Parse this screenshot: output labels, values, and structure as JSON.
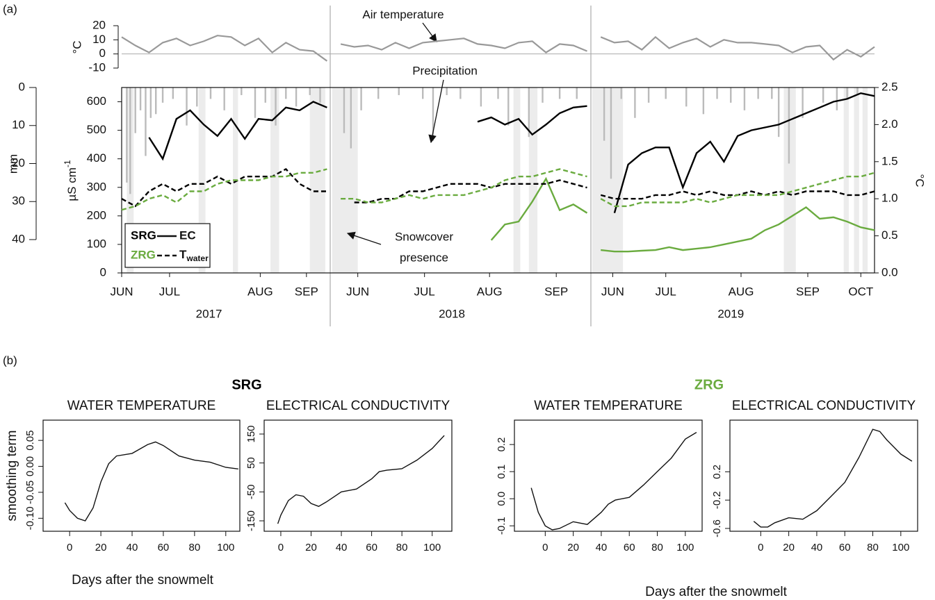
{
  "panel_labels": [
    "(a)",
    "(b)"
  ],
  "groups": [
    {
      "title": "SRG",
      "color": "#000000",
      "xlabel": "Days after the snowmelt"
    },
    {
      "title": "ZRG",
      "color": "#6aab3f",
      "xlabel": "Days after the snowmelt"
    }
  ],
  "chart_data": [
    {
      "type": "combo",
      "xlim": [
        0,
        440
      ],
      "xticks": [
        {
          "value": 0,
          "label": "JUN"
        },
        {
          "value": 28,
          "label": "JUL"
        },
        {
          "value": 81,
          "label": "AUG"
        },
        {
          "value": 108,
          "label": "SEP"
        },
        {
          "value": 138,
          "label": "JUN"
        },
        {
          "value": 177,
          "label": "JUL"
        },
        {
          "value": 215,
          "label": "AUG"
        },
        {
          "value": 254,
          "label": "SEP"
        },
        {
          "value": 287,
          "label": "JUN"
        },
        {
          "value": 318,
          "label": "JUL"
        },
        {
          "value": 362,
          "label": "AUG"
        },
        {
          "value": 401,
          "label": "SEP"
        },
        {
          "value": 432,
          "label": "OCT"
        }
      ],
      "year_labels": [
        {
          "value": 51,
          "label": "2017"
        },
        {
          "value": 193,
          "label": "2018"
        },
        {
          "value": 356,
          "label": "2019"
        }
      ],
      "x": [
        0,
        8,
        16,
        24,
        32,
        40,
        48,
        56,
        64,
        72,
        80,
        88,
        96,
        104,
        112,
        120,
        124,
        128,
        136,
        144,
        152,
        160,
        168,
        176,
        184,
        192,
        200,
        208,
        216,
        224,
        232,
        240,
        248,
        256,
        264,
        272,
        276,
        280,
        288,
        296,
        304,
        312,
        320,
        328,
        336,
        344,
        352,
        360,
        368,
        376,
        384,
        392,
        400,
        408,
        416,
        424,
        432,
        440
      ],
      "air": {
        "ylabel": "°C",
        "annotation": "Air temperature",
        "color": "#999999",
        "ylim": [
          -10,
          20
        ],
        "yticks": [
          20,
          10,
          0,
          -10
        ],
        "values": [
          12,
          6,
          1,
          8,
          11,
          6,
          9,
          13,
          12,
          6,
          11,
          1,
          8,
          3,
          2,
          -5,
          null,
          7,
          5,
          6,
          3,
          8,
          4,
          8,
          9,
          10,
          11,
          7,
          6,
          4,
          8,
          9,
          1,
          7,
          6,
          2,
          null,
          12,
          8,
          9,
          3,
          12,
          4,
          8,
          11,
          5,
          10,
          8,
          8,
          7,
          6,
          1,
          5,
          6,
          -4,
          3,
          -2,
          5
        ]
      },
      "precip": {
        "ylabel": "mm",
        "annotation": "Precipitation",
        "color": "#bbbbbb",
        "ylim": [
          0,
          40
        ],
        "yticks": [
          0,
          10,
          20,
          30,
          40
        ],
        "x": [
          3,
          5,
          8,
          11,
          14,
          17,
          20,
          24,
          30,
          38,
          44,
          52,
          60,
          70,
          78,
          84,
          90,
          96,
          102,
          110,
          116,
          130,
          134,
          140,
          150,
          162,
          176,
          182,
          190,
          198,
          210,
          220,
          226,
          238,
          246,
          256,
          266,
          282,
          286,
          292,
          300,
          308,
          318,
          330,
          340,
          348,
          356,
          364,
          372,
          380,
          384,
          390,
          398,
          410,
          418,
          424,
          430
        ],
        "values": [
          25,
          28,
          12,
          6,
          18,
          8,
          7,
          4,
          3,
          10,
          5,
          3,
          6,
          2,
          8,
          4,
          10,
          3,
          5,
          2,
          4,
          12,
          16,
          6,
          3,
          2,
          3,
          14,
          2,
          3,
          5,
          3,
          10,
          13,
          4,
          3,
          3,
          14,
          24,
          3,
          8,
          4,
          3,
          5,
          7,
          3,
          4,
          6,
          3,
          3,
          13,
          20,
          8,
          4,
          6,
          3,
          2
        ]
      },
      "snowcover": {
        "annotation": [
          "Snowcover",
          "presence"
        ],
        "color": "#ececec",
        "intervals": [
          [
            3,
            7
          ],
          [
            45,
            49
          ],
          [
            65,
            68
          ],
          [
            87,
            92
          ],
          [
            110,
            119
          ],
          [
            123,
            138
          ],
          [
            229,
            233
          ],
          [
            238,
            243
          ],
          [
            275,
            293
          ],
          [
            387,
            394
          ],
          [
            422,
            425
          ],
          [
            428,
            431
          ],
          [
            433,
            436
          ]
        ]
      },
      "ylabel": {
        "text": "µS cm",
        "sup": "-1"
      },
      "ylim": [
        0,
        650
      ],
      "yticks": [
        0,
        100,
        200,
        300,
        400,
        500,
        600
      ],
      "y2label": "°C",
      "y2lim": [
        0,
        2.5
      ],
      "y2ticks": [
        {
          "value": 0,
          "label": "0.0"
        },
        0.5,
        {
          "value": 1,
          "label": "1.0"
        },
        1.5,
        {
          "value": 2,
          "label": "2.0"
        },
        2.5
      ],
      "legend": {
        "sites": [
          {
            "name": "SRG",
            "color": "#000000"
          },
          {
            "name": "ZRG",
            "color": "#6aab3f"
          }
        ],
        "variables": [
          {
            "name": "EC",
            "dash": "solid"
          },
          {
            "name": "T",
            "subscript": "water",
            "dash": "dashed"
          }
        ]
      },
      "series": [
        {
          "color": "#000000",
          "dash": "solid",
          "axis": "y",
          "values": [
            null,
            null,
            475,
            400,
            540,
            570,
            520,
            480,
            540,
            470,
            540,
            535,
            580,
            570,
            600,
            580,
            null,
            null,
            null,
            null,
            null,
            null,
            null,
            null,
            null,
            null,
            null,
            530,
            545,
            520,
            540,
            485,
            520,
            560,
            580,
            585,
            null,
            null,
            210,
            380,
            420,
            440,
            440,
            300,
            420,
            460,
            390,
            480,
            500,
            510,
            520,
            540,
            560,
            580,
            600,
            610,
            630,
            620
          ]
        },
        {
          "color": "#6aab3f",
          "dash": "solid",
          "axis": "y",
          "values": [
            null,
            null,
            null,
            null,
            null,
            null,
            null,
            null,
            null,
            null,
            null,
            null,
            null,
            null,
            null,
            null,
            null,
            null,
            null,
            null,
            null,
            null,
            null,
            null,
            null,
            null,
            null,
            null,
            115,
            170,
            180,
            250,
            330,
            220,
            240,
            210,
            null,
            80,
            75,
            75,
            78,
            80,
            90,
            80,
            85,
            90,
            100,
            110,
            120,
            150,
            170,
            200,
            230,
            190,
            195,
            180,
            160,
            150
          ]
        },
        {
          "color": "#000000",
          "dash": "dashed",
          "axis": "y2",
          "values": [
            1.0,
            0.9,
            1.1,
            1.2,
            1.1,
            1.2,
            1.2,
            1.3,
            1.2,
            1.3,
            1.3,
            1.3,
            1.4,
            1.2,
            1.1,
            1.1,
            null,
            null,
            0.95,
            0.95,
            1.0,
            1.0,
            1.1,
            1.1,
            1.15,
            1.2,
            1.2,
            1.2,
            1.15,
            1.2,
            1.2,
            1.2,
            1.2,
            1.25,
            1.2,
            1.15,
            null,
            1.05,
            1.0,
            1.0,
            1.0,
            1.05,
            1.05,
            1.1,
            1.05,
            1.1,
            1.05,
            1.05,
            1.1,
            1.05,
            1.1,
            1.05,
            1.1,
            1.1,
            1.1,
            1.05,
            1.05,
            1.1
          ]
        },
        {
          "color": "#6aab3f",
          "dash": "dashed",
          "axis": "y2",
          "values": [
            0.85,
            0.9,
            1.0,
            1.05,
            0.95,
            1.1,
            1.1,
            1.2,
            1.25,
            1.25,
            1.25,
            1.3,
            1.3,
            1.35,
            1.35,
            1.4,
            null,
            1.0,
            1.0,
            0.95,
            0.95,
            1.0,
            1.05,
            1.0,
            1.05,
            1.05,
            1.05,
            1.1,
            1.15,
            1.25,
            1.3,
            1.3,
            1.35,
            1.4,
            1.35,
            1.3,
            null,
            1.0,
            0.9,
            0.9,
            0.95,
            0.95,
            0.95,
            0.95,
            1.0,
            0.95,
            1.0,
            1.05,
            1.05,
            1.05,
            1.05,
            1.1,
            1.15,
            1.2,
            1.25,
            1.3,
            1.3,
            1.35
          ]
        }
      ]
    },
    {
      "type": "line",
      "title": "WATER TEMPERATURE",
      "ylabel": "smoothing term",
      "color": "#111111",
      "xlim": [
        -17,
        109
      ],
      "ylim": [
        -0.125,
        0.089
      ],
      "xticks": [
        0,
        20,
        40,
        60,
        80,
        100
      ],
      "yticks": [
        0.05,
        {
          "value": 0,
          "label": "0.00"
        },
        -0.05,
        {
          "value": -0.1,
          "label": "-0.10"
        }
      ],
      "x": [
        -3,
        0,
        5,
        10,
        15,
        20,
        25,
        30,
        40,
        50,
        55,
        60,
        70,
        80,
        90,
        100,
        108
      ],
      "values": [
        -0.07,
        -0.085,
        -0.1,
        -0.105,
        -0.08,
        -0.03,
        0.005,
        0.02,
        0.025,
        0.042,
        0.047,
        0.04,
        0.02,
        0.012,
        0.008,
        -0.002,
        -0.005
      ]
    },
    {
      "type": "line",
      "title": "ELECTRICAL CONDUCTIVITY",
      "color": "#111111",
      "xlim": [
        -11,
        113
      ],
      "ylim": [
        -186,
        198
      ],
      "xticks": [
        0,
        20,
        40,
        60,
        80,
        100
      ],
      "yticks": [
        150,
        50,
        -50,
        -150
      ],
      "x": [
        -2,
        0,
        5,
        10,
        15,
        20,
        25,
        30,
        40,
        50,
        60,
        65,
        70,
        80,
        90,
        100,
        108
      ],
      "values": [
        -160,
        -130,
        -80,
        -60,
        -65,
        -90,
        -100,
        -85,
        -50,
        -40,
        -5,
        20,
        25,
        30,
        60,
        100,
        145
      ]
    },
    {
      "type": "line",
      "title": "WATER TEMPERATURE",
      "color": "#111111",
      "xlim": [
        -22,
        112
      ],
      "ylim": [
        -0.12,
        0.29
      ],
      "xticks": [
        0,
        20,
        40,
        60,
        80,
        100
      ],
      "yticks": [
        0.2,
        0.1,
        {
          "value": 0,
          "label": "0.0"
        },
        -0.1
      ],
      "x": [
        -10,
        -5,
        0,
        5,
        10,
        20,
        30,
        40,
        45,
        50,
        60,
        70,
        80,
        90,
        100,
        108
      ],
      "values": [
        0.04,
        -0.05,
        -0.1,
        -0.115,
        -0.11,
        -0.085,
        -0.095,
        -0.05,
        -0.02,
        -0.005,
        0.005,
        0.05,
        0.1,
        0.15,
        0.22,
        0.245
      ]
    },
    {
      "type": "line",
      "title": "ELECTRICAL CONDUCTIVITY",
      "color": "#111111",
      "xlim": [
        -22,
        112
      ],
      "ylim": [
        -0.64,
        0.93
      ],
      "xticks": [
        0,
        20,
        40,
        60,
        80,
        100
      ],
      "yticks": [
        0.2,
        -0.2,
        -0.6
      ],
      "x": [
        -5,
        0,
        5,
        10,
        20,
        30,
        40,
        50,
        60,
        70,
        80,
        85,
        90,
        100,
        108
      ],
      "values": [
        -0.5,
        -0.58,
        -0.58,
        -0.52,
        -0.45,
        -0.47,
        -0.35,
        -0.15,
        0.05,
        0.4,
        0.8,
        0.77,
        0.65,
        0.45,
        0.35
      ]
    }
  ]
}
